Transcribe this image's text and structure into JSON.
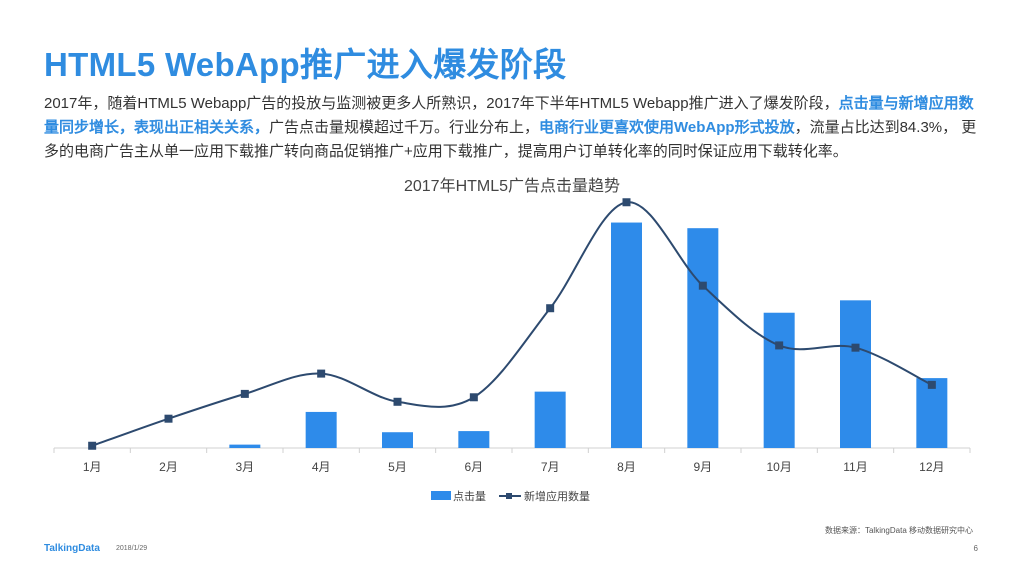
{
  "slide": {
    "title": "HTML5 WebApp推广进入爆发阶段",
    "intro": {
      "p1": "2017年，随着HTML5 Webapp广告的投放与监测被更多人所熟识，2017年下半年HTML5 Webapp推广进入了爆发阶段，",
      "h1": "点击量与新增应用数量同步增长，表现出正相关关系，",
      "p2": "广告点击量规模超过千万。行业分布上，",
      "h2": "电商行业更喜欢使用WebApp形式投放",
      "p3": "，流量占比达到84.3%， 更多的电商广告主从单一应用下载推广转向商品促销推广+应用下载推广，提高用户订单转化率的同时保证应用下载转化率。"
    },
    "source": "数据来源：TalkingData 移动数据研究中心",
    "brand": "TalkingData",
    "date": "2018/1/29",
    "page_number": "6"
  },
  "colors": {
    "accent": "#2f8ce0",
    "bar": "#2e8bea",
    "line": "#2d4a6f"
  },
  "chart_data": {
    "type": "bar",
    "title": "2017年HTML5广告点击量趋势",
    "categories": [
      "1月",
      "2月",
      "3月",
      "4月",
      "5月",
      "6月",
      "7月",
      "8月",
      "9月",
      "10月",
      "11月",
      "12月"
    ],
    "series": [
      {
        "name": "点击量",
        "type": "bar",
        "values": [
          0,
          0,
          1.5,
          16,
          7,
          7.5,
          25,
          100,
          97.5,
          60,
          65.5,
          31
        ]
      },
      {
        "name": "新增应用数量",
        "type": "line",
        "smooth": true,
        "marker": "square",
        "values": [
          1,
          13,
          24,
          33,
          20.5,
          22.5,
          62,
          109,
          72,
          45.5,
          44.5,
          28
        ]
      }
    ],
    "ylim": [
      0,
      110
    ],
    "grid": false,
    "legend": "bottom",
    "value_labels": false,
    "y_axis_visible": false
  }
}
